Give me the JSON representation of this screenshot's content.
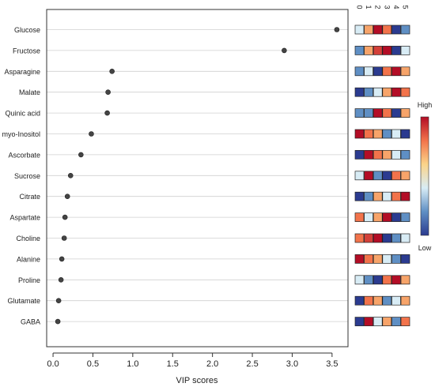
{
  "chart_data": {
    "type": "scatter",
    "xlabel": "VIP scores",
    "xlim": [
      -0.08,
      3.7
    ],
    "x_ticks": [
      0.0,
      0.5,
      1.0,
      1.5,
      2.0,
      2.5,
      3.0,
      3.5
    ],
    "x_tick_labels": [
      "0.0",
      "0.5",
      "1.0",
      "1.5",
      "2.0",
      "2.5",
      "3.0",
      "3.5"
    ],
    "grid": "horizontal",
    "categories": [
      "Glucose",
      "Fructose",
      "Asparagine",
      "Malate",
      "Quinic acid",
      "myo-Inositol",
      "Ascorbate",
      "Sucrose",
      "Citrate",
      "Aspartate",
      "Choline",
      "Alanine",
      "Proline",
      "Glutamate",
      "GABA"
    ],
    "values": [
      3.56,
      2.9,
      0.74,
      0.69,
      0.68,
      0.48,
      0.35,
      0.22,
      0.18,
      0.15,
      0.14,
      0.11,
      0.1,
      0.07,
      0.06
    ],
    "heatmap": {
      "columns": [
        "0",
        "1",
        "2",
        "3",
        "4",
        "5"
      ],
      "value_range": [
        0,
        10
      ],
      "cells": [
        [
          4,
          7,
          10,
          8,
          0,
          2
        ],
        [
          2,
          7,
          9,
          10,
          0,
          4
        ],
        [
          2,
          4,
          0,
          8,
          10,
          7
        ],
        [
          0,
          2,
          4,
          7,
          10,
          8
        ],
        [
          2,
          2,
          10,
          8,
          0,
          7
        ],
        [
          10,
          8,
          7,
          2,
          4,
          0
        ],
        [
          0,
          10,
          8,
          7,
          4,
          2
        ],
        [
          4,
          10,
          2,
          0,
          8,
          7
        ],
        [
          0,
          2,
          7,
          4,
          8,
          10
        ],
        [
          8,
          4,
          7,
          10,
          0,
          2
        ],
        [
          8,
          9,
          10,
          0,
          2,
          4
        ],
        [
          10,
          8,
          7,
          4,
          2,
          0
        ],
        [
          4,
          2,
          0,
          8,
          10,
          7
        ],
        [
          0,
          8,
          7,
          2,
          4,
          7
        ],
        [
          0,
          10,
          4,
          7,
          2,
          8
        ]
      ]
    },
    "color_scale": {
      "high_label": "High",
      "low_label": "Low",
      "stops": [
        "#2b3b90",
        "#5f8fc4",
        "#d8ecf5",
        "#fbd489",
        "#f2734b",
        "#b30d26"
      ]
    },
    "point_color": "#444444"
  }
}
